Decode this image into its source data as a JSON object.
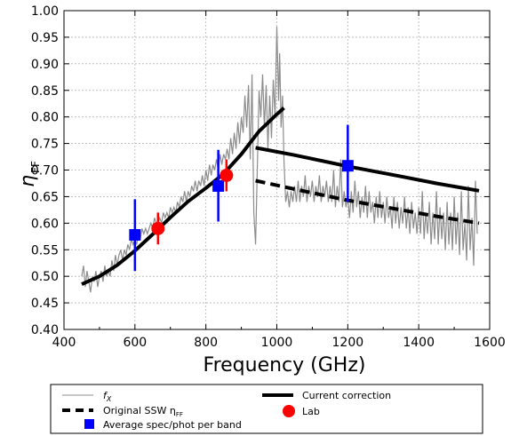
{
  "chart_data": {
    "type": "line",
    "xlabel": "Frequency (GHz)",
    "ylabel_symbol": "η",
    "ylabel_subscript": "FF",
    "xlim": [
      400,
      1600
    ],
    "ylim": [
      0.4,
      1.0
    ],
    "xticks": [
      400,
      600,
      800,
      1000,
      1200,
      1400,
      1600
    ],
    "yticks": [
      "0.40",
      "0.45",
      "0.50",
      "0.55",
      "0.60",
      "0.65",
      "0.70",
      "0.75",
      "0.80",
      "0.85",
      "0.90",
      "0.95",
      "1.00"
    ],
    "grid": true,
    "legend_position": "bottom",
    "colors": {
      "fx": "#8c8c8c",
      "lines": "#000000",
      "spec_phot": "#0000ff",
      "lab": "#ff0000"
    },
    "series": [
      {
        "name": "f_X",
        "style": "thin-gray",
        "points": [
          [
            450,
            0.5
          ],
          [
            455,
            0.52
          ],
          [
            460,
            0.48
          ],
          [
            465,
            0.51
          ],
          [
            470,
            0.49
          ],
          [
            475,
            0.47
          ],
          [
            480,
            0.5
          ],
          [
            485,
            0.49
          ],
          [
            490,
            0.51
          ],
          [
            495,
            0.48
          ],
          [
            500,
            0.5
          ],
          [
            505,
            0.51
          ],
          [
            510,
            0.49
          ],
          [
            515,
            0.52
          ],
          [
            520,
            0.5
          ],
          [
            525,
            0.51
          ],
          [
            530,
            0.5
          ],
          [
            535,
            0.53
          ],
          [
            540,
            0.51
          ],
          [
            545,
            0.54
          ],
          [
            550,
            0.52
          ],
          [
            555,
            0.54
          ],
          [
            560,
            0.55
          ],
          [
            565,
            0.53
          ],
          [
            570,
            0.55
          ],
          [
            575,
            0.54
          ],
          [
            580,
            0.56
          ],
          [
            585,
            0.55
          ],
          [
            590,
            0.57
          ],
          [
            595,
            0.56
          ],
          [
            600,
            0.57
          ],
          [
            605,
            0.56
          ],
          [
            610,
            0.58
          ],
          [
            615,
            0.57
          ],
          [
            620,
            0.59
          ],
          [
            625,
            0.58
          ],
          [
            630,
            0.59
          ],
          [
            635,
            0.58
          ],
          [
            640,
            0.59
          ],
          [
            645,
            0.6
          ],
          [
            650,
            0.59
          ],
          [
            655,
            0.61
          ],
          [
            660,
            0.6
          ],
          [
            665,
            0.6
          ],
          [
            670,
            0.61
          ],
          [
            675,
            0.6
          ],
          [
            680,
            0.62
          ],
          [
            685,
            0.61
          ],
          [
            690,
            0.62
          ],
          [
            695,
            0.61
          ],
          [
            700,
            0.63
          ],
          [
            705,
            0.62
          ],
          [
            710,
            0.63
          ],
          [
            715,
            0.62
          ],
          [
            720,
            0.64
          ],
          [
            725,
            0.63
          ],
          [
            730,
            0.65
          ],
          [
            735,
            0.64
          ],
          [
            740,
            0.66
          ],
          [
            745,
            0.64
          ],
          [
            750,
            0.66
          ],
          [
            755,
            0.65
          ],
          [
            760,
            0.67
          ],
          [
            765,
            0.66
          ],
          [
            770,
            0.68
          ],
          [
            775,
            0.66
          ],
          [
            780,
            0.68
          ],
          [
            785,
            0.67
          ],
          [
            790,
            0.69
          ],
          [
            795,
            0.67
          ],
          [
            800,
            0.7
          ],
          [
            805,
            0.68
          ],
          [
            810,
            0.71
          ],
          [
            815,
            0.69
          ],
          [
            820,
            0.71
          ],
          [
            825,
            0.7
          ],
          [
            830,
            0.72
          ],
          [
            835,
            0.7
          ],
          [
            840,
            0.73
          ],
          [
            845,
            0.71
          ],
          [
            850,
            0.73
          ],
          [
            855,
            0.72
          ],
          [
            860,
            0.74
          ],
          [
            865,
            0.72
          ],
          [
            870,
            0.76
          ],
          [
            875,
            0.73
          ],
          [
            880,
            0.77
          ],
          [
            885,
            0.74
          ],
          [
            890,
            0.79
          ],
          [
            895,
            0.75
          ],
          [
            900,
            0.8
          ],
          [
            905,
            0.77
          ],
          [
            910,
            0.84
          ],
          [
            915,
            0.78
          ],
          [
            920,
            0.86
          ],
          [
            925,
            0.72
          ],
          [
            930,
            0.88
          ],
          [
            935,
            0.62
          ],
          [
            940,
            0.56
          ],
          [
            945,
            0.7
          ],
          [
            950,
            0.85
          ],
          [
            955,
            0.8
          ],
          [
            960,
            0.88
          ],
          [
            965,
            0.78
          ],
          [
            970,
            0.86
          ],
          [
            975,
            0.74
          ],
          [
            980,
            0.84
          ],
          [
            985,
            0.76
          ],
          [
            990,
            0.87
          ],
          [
            995,
            0.8
          ],
          [
            1000,
            0.97
          ],
          [
            1005,
            0.83
          ],
          [
            1008,
            0.92
          ],
          [
            1012,
            0.78
          ],
          [
            1016,
            0.84
          ],
          [
            1020,
            0.72
          ],
          [
            1025,
            0.64
          ],
          [
            1030,
            0.66
          ],
          [
            1035,
            0.63
          ],
          [
            1040,
            0.66
          ],
          [
            1045,
            0.64
          ],
          [
            1050,
            0.67
          ],
          [
            1055,
            0.64
          ],
          [
            1060,
            0.68
          ],
          [
            1065,
            0.64
          ],
          [
            1070,
            0.67
          ],
          [
            1075,
            0.65
          ],
          [
            1080,
            0.69
          ],
          [
            1085,
            0.64
          ],
          [
            1090,
            0.67
          ],
          [
            1095,
            0.65
          ],
          [
            1100,
            0.68
          ],
          [
            1105,
            0.64
          ],
          [
            1110,
            0.67
          ],
          [
            1115,
            0.65
          ],
          [
            1120,
            0.69
          ],
          [
            1125,
            0.64
          ],
          [
            1130,
            0.67
          ],
          [
            1135,
            0.65
          ],
          [
            1140,
            0.68
          ],
          [
            1145,
            0.64
          ],
          [
            1150,
            0.67
          ],
          [
            1155,
            0.64
          ],
          [
            1160,
            0.7
          ],
          [
            1165,
            0.63
          ],
          [
            1170,
            0.67
          ],
          [
            1175,
            0.64
          ],
          [
            1180,
            0.72
          ],
          [
            1185,
            0.63
          ],
          [
            1190,
            0.66
          ],
          [
            1195,
            0.63
          ],
          [
            1200,
            0.65
          ],
          [
            1205,
            0.61
          ],
          [
            1210,
            0.66
          ],
          [
            1215,
            0.62
          ],
          [
            1220,
            0.68
          ],
          [
            1225,
            0.63
          ],
          [
            1230,
            0.66
          ],
          [
            1235,
            0.61
          ],
          [
            1240,
            0.65
          ],
          [
            1245,
            0.62
          ],
          [
            1250,
            0.67
          ],
          [
            1255,
            0.61
          ],
          [
            1260,
            0.66
          ],
          [
            1265,
            0.62
          ],
          [
            1270,
            0.64
          ],
          [
            1275,
            0.6
          ],
          [
            1280,
            0.65
          ],
          [
            1285,
            0.61
          ],
          [
            1290,
            0.66
          ],
          [
            1295,
            0.61
          ],
          [
            1300,
            0.64
          ],
          [
            1305,
            0.6
          ],
          [
            1310,
            0.65
          ],
          [
            1315,
            0.61
          ],
          [
            1320,
            0.63
          ],
          [
            1325,
            0.59
          ],
          [
            1330,
            0.65
          ],
          [
            1335,
            0.6
          ],
          [
            1340,
            0.64
          ],
          [
            1345,
            0.59
          ],
          [
            1350,
            0.63
          ],
          [
            1355,
            0.6
          ],
          [
            1360,
            0.65
          ],
          [
            1365,
            0.59
          ],
          [
            1370,
            0.63
          ],
          [
            1375,
            0.58
          ],
          [
            1380,
            0.64
          ],
          [
            1385,
            0.59
          ],
          [
            1390,
            0.62
          ],
          [
            1395,
            0.58
          ],
          [
            1400,
            0.63
          ],
          [
            1405,
            0.58
          ],
          [
            1410,
            0.66
          ],
          [
            1415,
            0.57
          ],
          [
            1420,
            0.62
          ],
          [
            1425,
            0.58
          ],
          [
            1430,
            0.64
          ],
          [
            1435,
            0.56
          ],
          [
            1440,
            0.62
          ],
          [
            1445,
            0.57
          ],
          [
            1450,
            0.66
          ],
          [
            1455,
            0.56
          ],
          [
            1460,
            0.63
          ],
          [
            1465,
            0.57
          ],
          [
            1470,
            0.62
          ],
          [
            1475,
            0.55
          ],
          [
            1480,
            0.64
          ],
          [
            1485,
            0.56
          ],
          [
            1490,
            0.62
          ],
          [
            1495,
            0.55
          ],
          [
            1500,
            0.65
          ],
          [
            1505,
            0.56
          ],
          [
            1510,
            0.62
          ],
          [
            1515,
            0.54
          ],
          [
            1520,
            0.66
          ],
          [
            1525,
            0.55
          ],
          [
            1530,
            0.6
          ],
          [
            1535,
            0.53
          ],
          [
            1540,
            0.67
          ],
          [
            1545,
            0.55
          ],
          [
            1550,
            0.61
          ],
          [
            1555,
            0.52
          ],
          [
            1560,
            0.68
          ],
          [
            1565,
            0.58
          ]
        ]
      },
      {
        "name": "Original SSW η_FF",
        "style": "dashed-black",
        "points": [
          [
            940,
            0.68
          ],
          [
            1050,
            0.664
          ],
          [
            1200,
            0.643
          ],
          [
            1350,
            0.625
          ],
          [
            1450,
            0.613
          ],
          [
            1570,
            0.6
          ]
        ]
      },
      {
        "name": "Current correction",
        "style": "thick-black",
        "segments": [
          [
            [
              450,
              0.485
            ],
            [
              500,
              0.5
            ],
            [
              550,
              0.521
            ],
            [
              600,
              0.548
            ],
            [
              650,
              0.579
            ],
            [
              700,
              0.611
            ],
            [
              750,
              0.641
            ],
            [
              800,
              0.666
            ],
            [
              850,
              0.693
            ],
            [
              900,
              0.73
            ],
            [
              950,
              0.773
            ],
            [
              1000,
              0.805
            ],
            [
              1020,
              0.817
            ]
          ],
          [
            [
              940,
              0.742
            ],
            [
              1050,
              0.728
            ],
            [
              1200,
              0.707
            ],
            [
              1350,
              0.688
            ],
            [
              1450,
              0.675
            ],
            [
              1570,
              0.661
            ]
          ]
        ]
      },
      {
        "name": "Average spec/phot per band",
        "style": "blue-square",
        "markers": [
          {
            "x": 600,
            "y": 0.578,
            "yerr_low": 0.51,
            "yerr_high": 0.645
          },
          {
            "x": 835,
            "y": 0.67,
            "yerr_low": 0.603,
            "yerr_high": 0.738
          },
          {
            "x": 1200,
            "y": 0.708,
            "yerr_low": 0.64,
            "yerr_high": 0.785
          }
        ]
      },
      {
        "name": "Lab",
        "style": "red-circle",
        "markers": [
          {
            "x": 665,
            "y": 0.59,
            "yerr_low": 0.56,
            "yerr_high": 0.62
          },
          {
            "x": 858,
            "y": 0.69,
            "yerr_low": 0.66,
            "yerr_high": 0.72
          }
        ]
      }
    ],
    "legend": {
      "fx_label": "f",
      "fx_sub": "X",
      "ssw_label": "Original SSW η",
      "ssw_sub": "FF",
      "avg_label": "Average spec/phot per band",
      "current_label": "Current correction",
      "lab_label": "Lab"
    }
  }
}
